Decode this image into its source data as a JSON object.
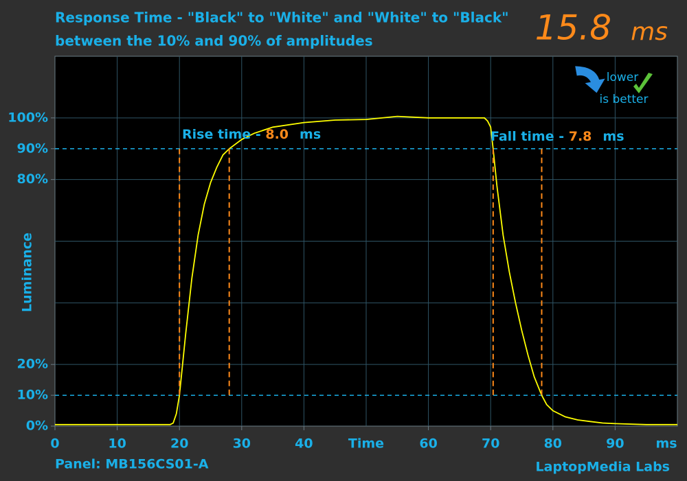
{
  "header": {
    "value": "15.8",
    "unit": "ms"
  },
  "badge": {
    "line1": "lower",
    "line2": "is better"
  },
  "footer": {
    "panel": "Panel: MB156CS01-A",
    "brand": "LaptopMedia Labs"
  },
  "chart_data": {
    "type": "line",
    "title": "Response Time - \"Black\" to \"White\" and \"White\" to \"Black\"",
    "subtitle": "between the 10% and 90% of amplitudes",
    "y_label": "Luminance",
    "x_label": "Time",
    "x_unit": "ms",
    "xlim": [
      0,
      100
    ],
    "ylim": [
      0,
      120
    ],
    "xticks": [
      0,
      10,
      20,
      30,
      40,
      60,
      70,
      80,
      90
    ],
    "yticks": [
      {
        "value": 0,
        "label": "0%"
      },
      {
        "value": 10,
        "label": "10%"
      },
      {
        "value": 20,
        "label": "20%"
      },
      {
        "value": 80,
        "label": "80%"
      },
      {
        "value": 90,
        "label": "90%"
      },
      {
        "value": 100,
        "label": "100%"
      }
    ],
    "reference_lines": [
      10,
      90
    ],
    "markers": [
      20.0,
      28.0,
      70.4,
      78.2
    ],
    "rise": {
      "label": "Rise time - ",
      "value": "8.0",
      "unit": "ms"
    },
    "fall": {
      "label": "Fall time - ",
      "value": "7.8",
      "unit": "ms"
    },
    "color": "#ffff00",
    "x": [
      0,
      5,
      10,
      15,
      18.5,
      19,
      19.5,
      20,
      21,
      22,
      23,
      24,
      25,
      26,
      27,
      28,
      30,
      32,
      35,
      40,
      45,
      50,
      55,
      60,
      65,
      69,
      69.5,
      70,
      70.4,
      71,
      72,
      73,
      74,
      75,
      76,
      77,
      78.2,
      79,
      80,
      82,
      84,
      86,
      88,
      90,
      95,
      100
    ],
    "values": [
      0.5,
      0.5,
      0.5,
      0.5,
      0.5,
      1,
      4,
      10,
      30,
      48,
      62,
      72,
      79,
      84,
      88,
      90,
      93,
      95,
      97,
      98.5,
      99.3,
      99.5,
      100.5,
      100,
      100,
      100,
      99,
      97,
      90,
      78,
      62,
      50,
      40,
      31,
      23,
      16,
      10,
      7,
      5,
      3,
      2,
      1.5,
      1,
      0.8,
      0.5,
      0.5
    ]
  }
}
